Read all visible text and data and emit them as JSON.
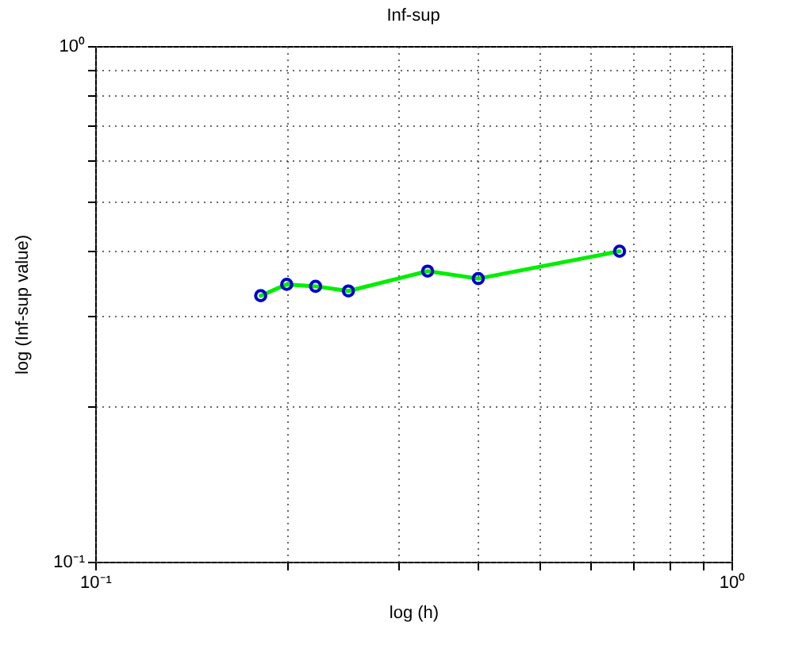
{
  "chart_data": {
    "type": "line",
    "title": "Inf-sup",
    "xlabel": "log (h)",
    "ylabel": "log (Inf-sup value)",
    "x": [
      0.182,
      0.2,
      0.222,
      0.25,
      0.333,
      0.4,
      0.667
    ],
    "series": [
      {
        "color": "#00ee00",
        "values": [
          0.328,
          0.345,
          0.342,
          0.335,
          0.366,
          0.354,
          0.4
        ]
      }
    ],
    "log": "xy",
    "marker": "circle",
    "line_style": "solid",
    "grid": true,
    "xlim": [
      0.1,
      1
    ],
    "ylim": [
      0.1,
      1
    ],
    "xticks": [
      {
        "value": 0.1,
        "label": "10⁻¹"
      },
      {
        "value": 0.2,
        "label": null
      },
      {
        "value": 0.3,
        "label": null
      },
      {
        "value": 0.4,
        "label": null
      },
      {
        "value": 0.5,
        "label": null
      },
      {
        "value": 0.6,
        "label": null
      },
      {
        "value": 0.7,
        "label": null
      },
      {
        "value": 0.8,
        "label": null
      },
      {
        "value": 0.9,
        "label": null
      },
      {
        "value": 1,
        "label": "10⁰"
      }
    ],
    "yticks": [
      {
        "value": 0.1,
        "label": "10⁻¹"
      },
      {
        "value": 0.2,
        "label": null
      },
      {
        "value": 0.3,
        "label": null
      },
      {
        "value": 0.4,
        "label": null
      },
      {
        "value": 0.5,
        "label": null
      },
      {
        "value": 0.6,
        "label": null
      },
      {
        "value": 0.7,
        "label": null
      },
      {
        "value": 0.8,
        "label": null
      },
      {
        "value": 0.9,
        "label": null
      },
      {
        "value": 1,
        "label": "10⁰"
      }
    ]
  }
}
